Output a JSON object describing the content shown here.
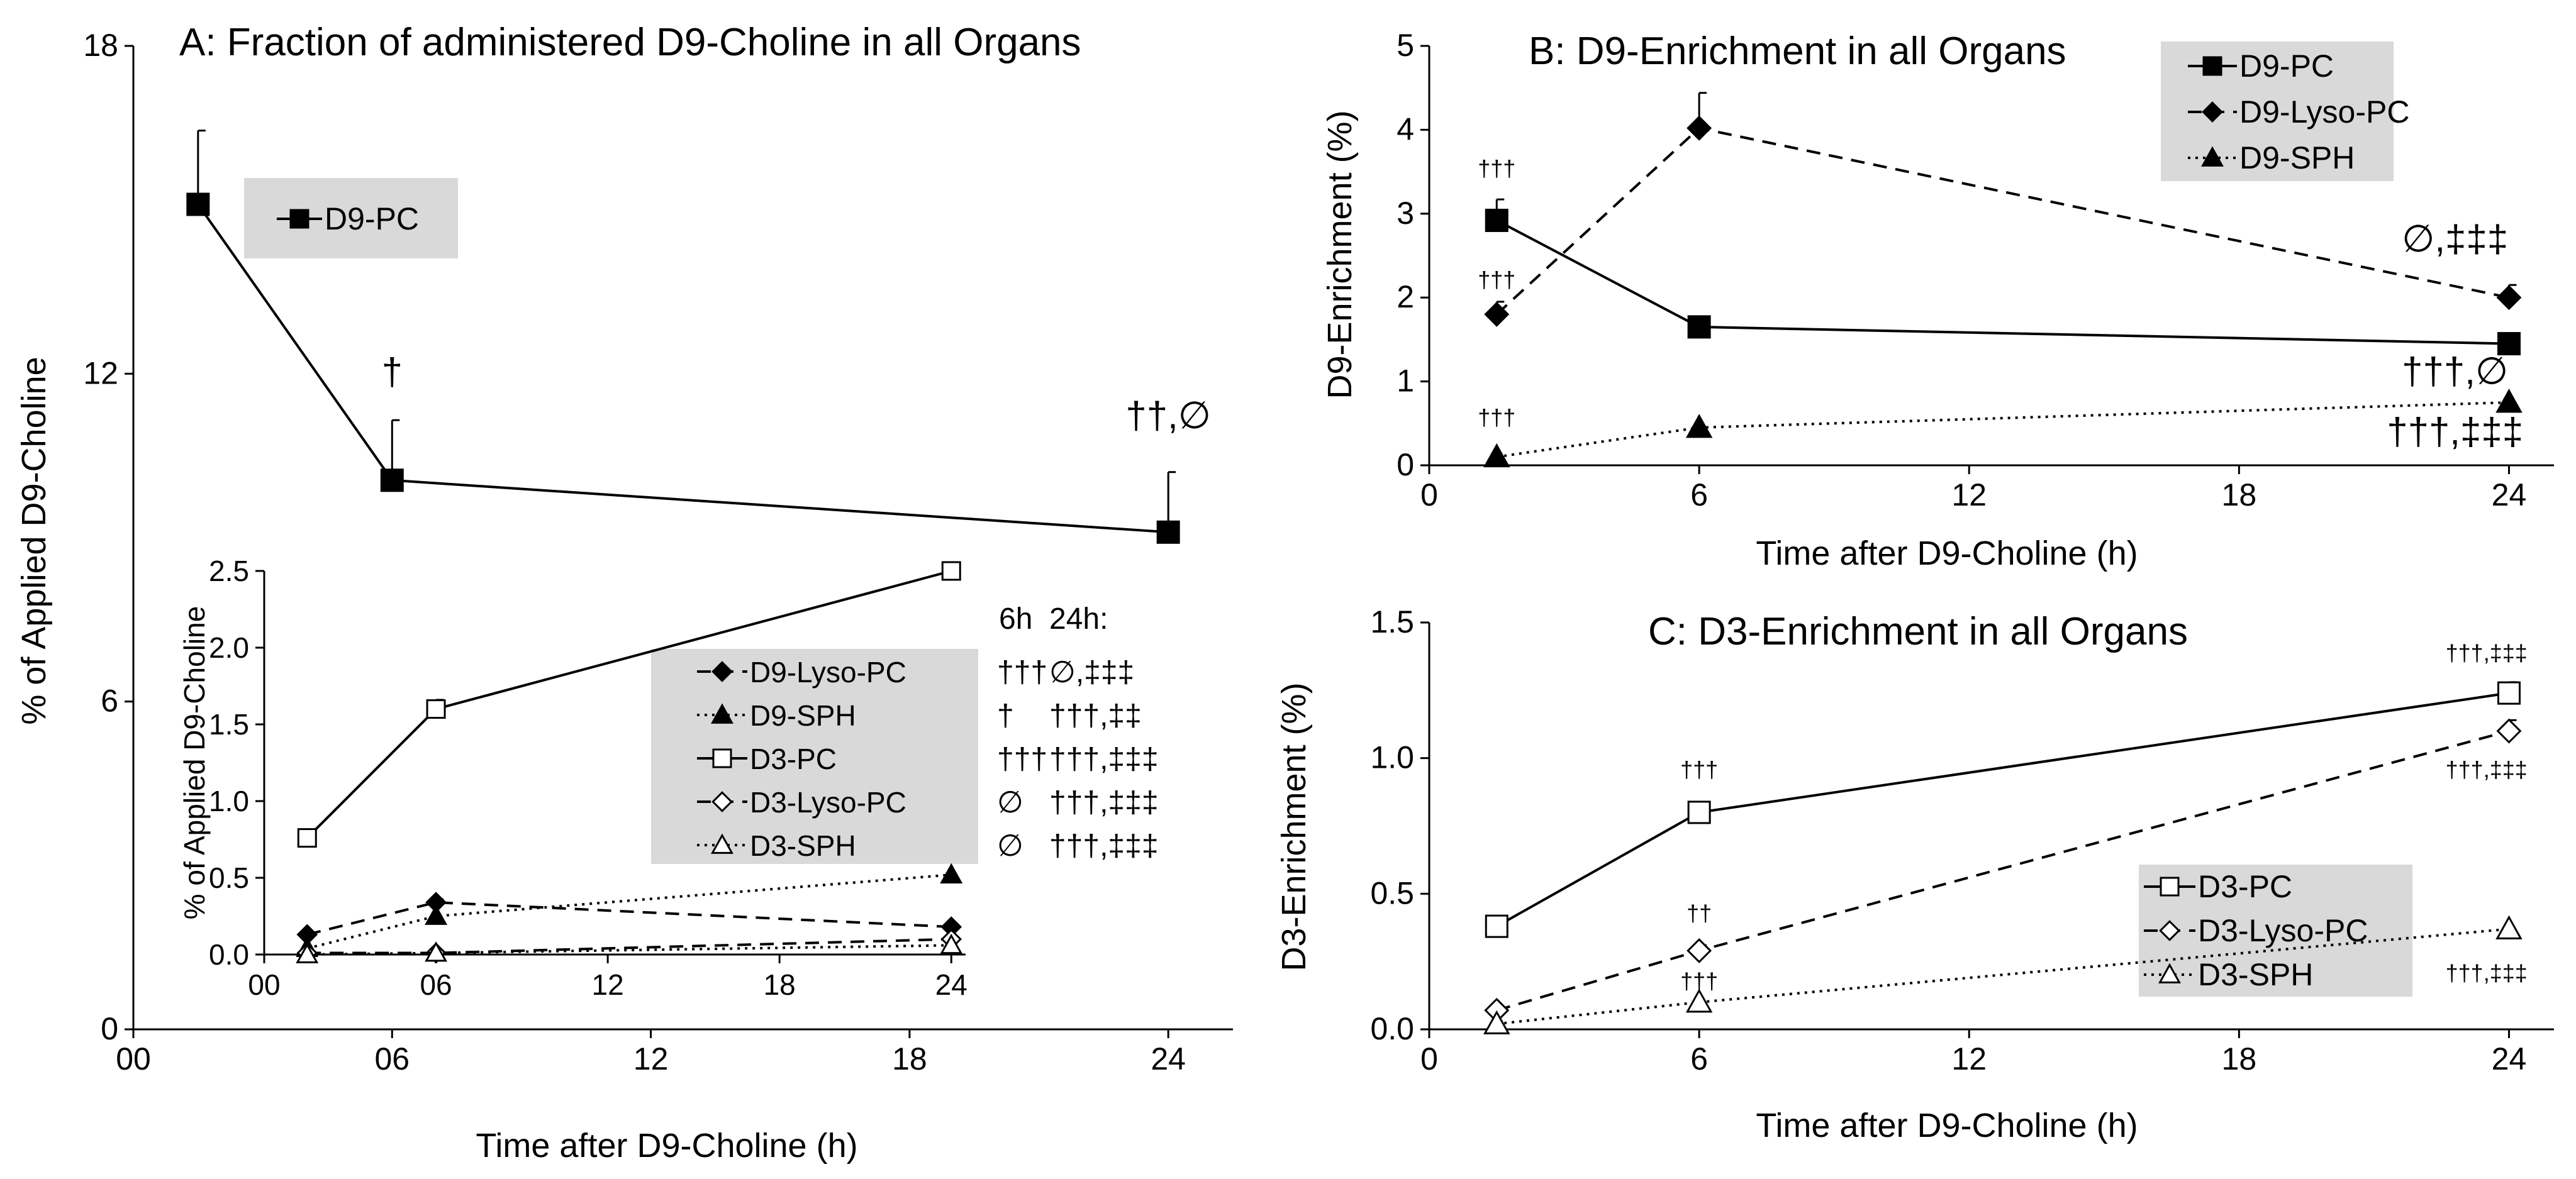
{
  "chart_data": [
    {
      "id": "A",
      "type": "line",
      "title": "A: Fraction of administered D9-Choline in all Organs",
      "xlabel": "Time after D9-Choline (h)",
      "ylabel": "% of Applied D9-Choline",
      "xlim": [
        0,
        25.5
      ],
      "ylim": [
        0,
        18
      ],
      "xticks": [
        0,
        6,
        12,
        18,
        24
      ],
      "xtick_labels": [
        "00",
        "06",
        "12",
        "18",
        "24"
      ],
      "yticks": [
        0,
        6,
        12,
        18
      ],
      "ytick_labels": [
        "0",
        "6",
        "12",
        "18"
      ],
      "series": [
        {
          "name": "D9-PC",
          "marker": "square-filled",
          "dash": "solid",
          "x": [
            1.5,
            6,
            24
          ],
          "y": [
            15.1,
            10.05,
            9.1
          ],
          "err": [
            1.35,
            1.1,
            1.1
          ]
        }
      ],
      "legend": {
        "position": "top-left",
        "entries": [
          "D9-PC"
        ]
      },
      "annotations": [
        {
          "text": "†",
          "x": 6,
          "y": 11.8
        },
        {
          "text": "††,∅",
          "x": 24,
          "y": 11.0
        }
      ],
      "inset": {
        "ylabel": "% of Applied D9-Choline",
        "xlim": [
          0,
          24.5
        ],
        "ylim": [
          0,
          2.5
        ],
        "xticks": [
          0,
          6,
          12,
          18,
          24
        ],
        "xtick_labels": [
          "00",
          "06",
          "12",
          "18",
          "24"
        ],
        "yticks": [
          0,
          0.5,
          1.0,
          1.5,
          2.0,
          2.5
        ],
        "ytick_labels": [
          "0.0",
          "0.5",
          "1.0",
          "1.5",
          "2.0",
          "2.5"
        ],
        "series": [
          {
            "name": "D9-Lyso-PC",
            "marker": "diamond-filled",
            "dash": "dashed",
            "x": [
              1.5,
              6,
              24
            ],
            "y": [
              0.13,
              0.34,
              0.18
            ],
            "err": [
              0.01,
              0.02,
              0.01
            ]
          },
          {
            "name": "D9-SPH",
            "marker": "triangle-filled",
            "dash": "dotted",
            "x": [
              1.5,
              6,
              24
            ],
            "y": [
              0.04,
              0.25,
              0.52
            ],
            "err": [
              0,
              0,
              0
            ]
          },
          {
            "name": "D3-PC",
            "marker": "square-open",
            "dash": "solid",
            "x": [
              1.5,
              6,
              24
            ],
            "y": [
              0.76,
              1.6,
              2.5
            ],
            "err": [
              0.02,
              0.06,
              0.02
            ]
          },
          {
            "name": "D3-Lyso-PC",
            "marker": "diamond-open",
            "dash": "dashed",
            "x": [
              1.5,
              6,
              24
            ],
            "y": [
              0.01,
              0.01,
              0.1
            ],
            "err": [
              0,
              0,
              0
            ]
          },
          {
            "name": "D3-SPH",
            "marker": "triangle-open",
            "dash": "dotted",
            "x": [
              1.5,
              6,
              24
            ],
            "y": [
              0.0,
              0.01,
              0.06
            ],
            "err": [
              0,
              0,
              0
            ]
          }
        ],
        "sig_headers": [
          "6h",
          "24h:"
        ],
        "sig_rows": [
          {
            "name": "D9-Lyso-PC",
            "h6": "†††",
            "h24": "∅,‡‡‡"
          },
          {
            "name": "D9-SPH",
            "h6": "†",
            "h24": "†††,‡‡"
          },
          {
            "name": "D3-PC",
            "h6": "†††",
            "h24": "†††,‡‡‡"
          },
          {
            "name": "D3-Lyso-PC",
            "h6": "∅",
            "h24": "†††,‡‡‡"
          },
          {
            "name": "D3-SPH",
            "h6": "∅",
            "h24": "†††,‡‡‡"
          }
        ]
      }
    },
    {
      "id": "B",
      "type": "line",
      "title": "B: D9-Enrichment in all Organs",
      "xlabel": "Time after D9-Choline (h)",
      "ylabel": "D9-Enrichment (%)",
      "xlim": [
        0,
        25
      ],
      "ylim": [
        0,
        5
      ],
      "xticks": [
        0,
        6,
        12,
        18,
        24
      ],
      "xtick_labels": [
        "0",
        "6",
        "12",
        "18",
        "24"
      ],
      "yticks": [
        0,
        1,
        2,
        3,
        4,
        5
      ],
      "ytick_labels": [
        "0",
        "1",
        "2",
        "3",
        "4",
        "5"
      ],
      "series": [
        {
          "name": "D9-PC",
          "marker": "square-filled",
          "dash": "solid",
          "x": [
            1.5,
            6,
            24
          ],
          "y": [
            2.92,
            1.65,
            1.45
          ],
          "err": [
            0.25,
            0.06,
            0.12
          ]
        },
        {
          "name": "D9-Lyso-PC",
          "marker": "diamond-filled",
          "dash": "dashed",
          "x": [
            1.5,
            6,
            24
          ],
          "y": [
            1.8,
            4.02,
            2.0
          ],
          "err": [
            0.15,
            0.42,
            0.15
          ]
        },
        {
          "name": "D9-SPH",
          "marker": "triangle-filled",
          "dash": "dotted",
          "x": [
            1.5,
            6,
            24
          ],
          "y": [
            0.1,
            0.45,
            0.75
          ],
          "err": [
            0,
            0,
            0
          ]
        }
      ],
      "legend": {
        "position": "top-right",
        "entries": [
          "D9-PC",
          "D9-Lyso-PC",
          "D9-SPH"
        ]
      },
      "annotations": [
        {
          "text": "†††",
          "x": 1.5,
          "y": 3.45,
          "size": "small"
        },
        {
          "text": "†††",
          "x": 1.5,
          "y": 2.12,
          "size": "small"
        },
        {
          "text": "†††",
          "x": 1.5,
          "y": 0.48,
          "size": "small"
        },
        {
          "text": "∅,‡‡‡",
          "x": 22.8,
          "y": 2.55,
          "size": "large"
        },
        {
          "text": "†††,∅",
          "x": 22.8,
          "y": 0.97,
          "size": "large"
        },
        {
          "text": "†††,‡‡‡",
          "x": 22.8,
          "y": 0.25,
          "size": "large"
        }
      ]
    },
    {
      "id": "C",
      "type": "line",
      "title": "C: D3-Enrichment in all Organs",
      "xlabel": "Time after D9-Choline (h)",
      "ylabel": "D3-Enrichment (%)",
      "xlim": [
        0,
        25
      ],
      "ylim": [
        0,
        1.5
      ],
      "xticks": [
        0,
        6,
        12,
        18,
        24
      ],
      "xtick_labels": [
        "0",
        "6",
        "12",
        "18",
        "24"
      ],
      "yticks": [
        0,
        0.5,
        1.0,
        1.5
      ],
      "ytick_labels": [
        "0.0",
        "0.5",
        "1.0",
        "1.5"
      ],
      "series": [
        {
          "name": "D3-PC",
          "marker": "square-open",
          "dash": "solid",
          "x": [
            1.5,
            6,
            24
          ],
          "y": [
            0.38,
            0.8,
            1.24
          ],
          "err": [
            0.01,
            0.03,
            0.04
          ]
        },
        {
          "name": "D3-Lyso-PC",
          "marker": "diamond-open",
          "dash": "dashed",
          "x": [
            1.5,
            6,
            24
          ],
          "y": [
            0.07,
            0.29,
            1.1
          ],
          "err": [
            0,
            0.02,
            0.04
          ]
        },
        {
          "name": "D3-SPH",
          "marker": "triangle-open",
          "dash": "dotted",
          "x": [
            1.5,
            6,
            24
          ],
          "y": [
            0.02,
            0.1,
            0.37
          ],
          "err": [
            0,
            0,
            0
          ]
        }
      ],
      "legend": {
        "position": "bottom-right",
        "entries": [
          "D3-PC",
          "D3-Lyso-PC",
          "D3-SPH"
        ]
      },
      "annotations": [
        {
          "text": "†††",
          "x": 6,
          "y": 0.93,
          "size": "small"
        },
        {
          "text": "††",
          "x": 6,
          "y": 0.4,
          "size": "small"
        },
        {
          "text": "†††",
          "x": 6,
          "y": 0.15,
          "size": "small"
        },
        {
          "text": "†††,‡‡‡",
          "x": 23.5,
          "y": 1.36,
          "size": "small"
        },
        {
          "text": "†††,‡‡‡",
          "x": 23.5,
          "y": 0.93,
          "size": "small"
        },
        {
          "text": "†††,‡‡‡",
          "x": 23.5,
          "y": 0.18,
          "size": "small"
        }
      ]
    }
  ]
}
